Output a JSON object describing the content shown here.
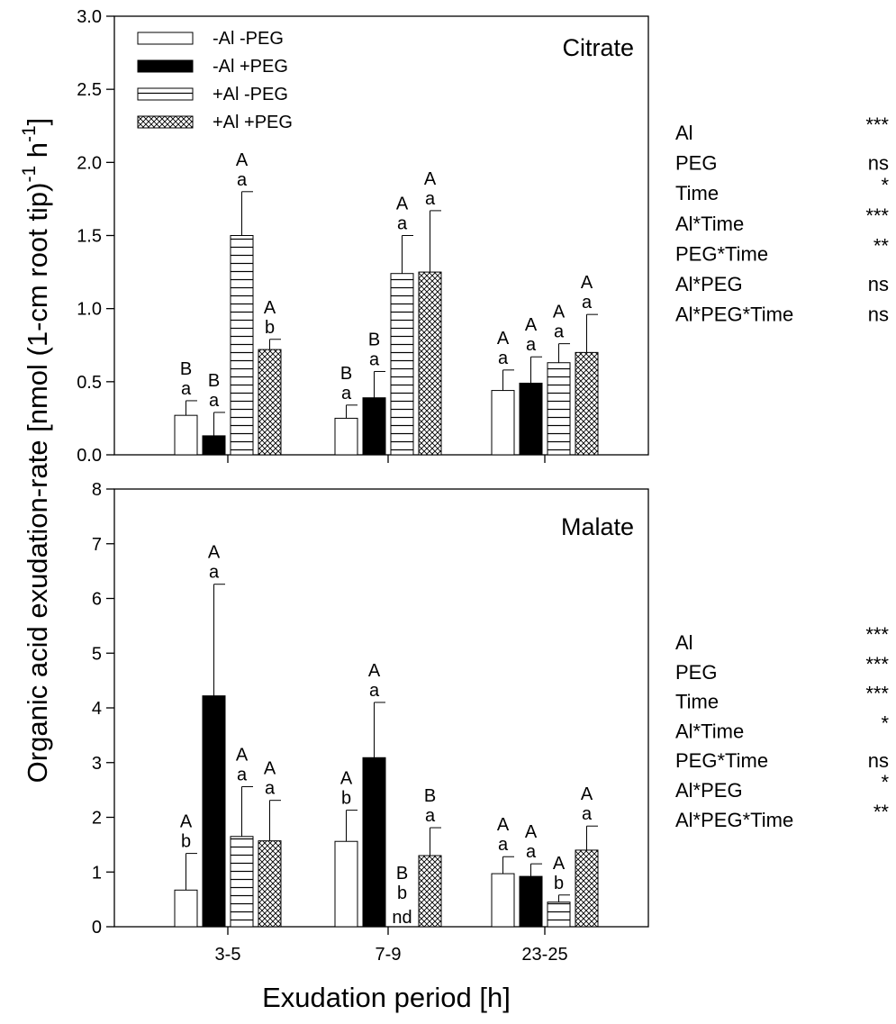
{
  "figure": {
    "ylabel": "Organic acid exudation-rate [nmol (1-cm root tip)",
    "ylabel_sup1": "-1",
    "ylabel_mid": " h",
    "ylabel_sup2": "-1",
    "ylabel_end": "]",
    "xlabel": "Exudation period [h]"
  },
  "colors": {
    "axis": "#000000",
    "bar_empty": "#ffffff",
    "bar_solid": "#000000"
  },
  "chart_data": [
    {
      "type": "bar",
      "panel_label": "Citrate",
      "categories": [
        "3-5",
        "7-9",
        "23-25"
      ],
      "ylim": [
        0,
        3.0
      ],
      "yticks": [
        "0.0",
        "0.5",
        "1.0",
        "1.5",
        "2.0",
        "2.5",
        "3.0"
      ],
      "legend_position": "top-left",
      "series": [
        {
          "name": "-Al -PEG",
          "pattern": "white",
          "values": [
            0.27,
            0.25,
            0.44
          ],
          "errors": [
            0.1,
            0.09,
            0.14
          ],
          "letters_upper": [
            "B",
            "B",
            "A"
          ],
          "letters_lower": [
            "a",
            "a",
            "a"
          ]
        },
        {
          "name": "-Al +PEG",
          "pattern": "black",
          "values": [
            0.13,
            0.39,
            0.49
          ],
          "errors": [
            0.16,
            0.18,
            0.18
          ],
          "letters_upper": [
            "B",
            "B",
            "A"
          ],
          "letters_lower": [
            "a",
            "a",
            "a"
          ]
        },
        {
          "name": "+Al -PEG",
          "pattern": "horizontal-lines",
          "values": [
            1.5,
            1.24,
            0.63
          ],
          "errors": [
            0.3,
            0.26,
            0.13
          ],
          "letters_upper": [
            "A",
            "A",
            "A"
          ],
          "letters_lower": [
            "a",
            "a",
            "a"
          ]
        },
        {
          "name": "+Al +PEG",
          "pattern": "crosshatch",
          "values": [
            0.72,
            1.25,
            0.7
          ],
          "errors": [
            0.07,
            0.42,
            0.26
          ],
          "letters_upper": [
            "A",
            "A",
            "A"
          ],
          "letters_lower": [
            "b",
            "a",
            "a"
          ]
        }
      ],
      "stats": [
        {
          "term": "Al",
          "sig": "***"
        },
        {
          "term": "PEG",
          "sig": "ns"
        },
        {
          "term": "Time",
          "sig": "*"
        },
        {
          "term": "Al*Time",
          "sig": "***"
        },
        {
          "term": "PEG*Time",
          "sig": "**"
        },
        {
          "term": "Al*PEG",
          "sig": "ns"
        },
        {
          "term": "Al*PEG*Time",
          "sig": "ns"
        }
      ]
    },
    {
      "type": "bar",
      "panel_label": "Malate",
      "categories": [
        "3-5",
        "7-9",
        "23-25"
      ],
      "ylim": [
        0,
        8
      ],
      "yticks": [
        "0",
        "1",
        "2",
        "3",
        "4",
        "5",
        "6",
        "7",
        "8"
      ],
      "series": [
        {
          "name": "-Al -PEG",
          "pattern": "white",
          "values": [
            0.67,
            1.56,
            0.97
          ],
          "errors": [
            0.67,
            0.57,
            0.31
          ],
          "letters_upper": [
            "A",
            "A",
            "A"
          ],
          "letters_lower": [
            "b",
            "b",
            "a"
          ]
        },
        {
          "name": "-Al +PEG",
          "pattern": "black",
          "values": [
            4.22,
            3.09,
            0.92
          ],
          "errors": [
            2.04,
            1.01,
            0.23
          ],
          "letters_upper": [
            "A",
            "A",
            "A"
          ],
          "letters_lower": [
            "a",
            "a",
            "a"
          ]
        },
        {
          "name": "+Al -PEG",
          "pattern": "horizontal-lines",
          "values": [
            1.65,
            0,
            0.45
          ],
          "errors": [
            0.91,
            0,
            0.13
          ],
          "letters_upper": [
            "A",
            "B",
            "A"
          ],
          "letters_lower": [
            "a",
            "b",
            "b"
          ],
          "notes": [
            "",
            "nd",
            ""
          ]
        },
        {
          "name": "+Al +PEG",
          "pattern": "crosshatch",
          "values": [
            1.57,
            1.3,
            1.4
          ],
          "errors": [
            0.74,
            0.51,
            0.44
          ],
          "letters_upper": [
            "A",
            "B",
            "A"
          ],
          "letters_lower": [
            "a",
            "a",
            "a"
          ]
        }
      ],
      "stats": [
        {
          "term": "Al",
          "sig": "***"
        },
        {
          "term": "PEG",
          "sig": "***"
        },
        {
          "term": "Time",
          "sig": "***"
        },
        {
          "term": "Al*Time",
          "sig": "*"
        },
        {
          "term": "PEG*Time",
          "sig": "ns"
        },
        {
          "term": "Al*PEG",
          "sig": "*"
        },
        {
          "term": "Al*PEG*Time",
          "sig": "**"
        }
      ]
    }
  ]
}
